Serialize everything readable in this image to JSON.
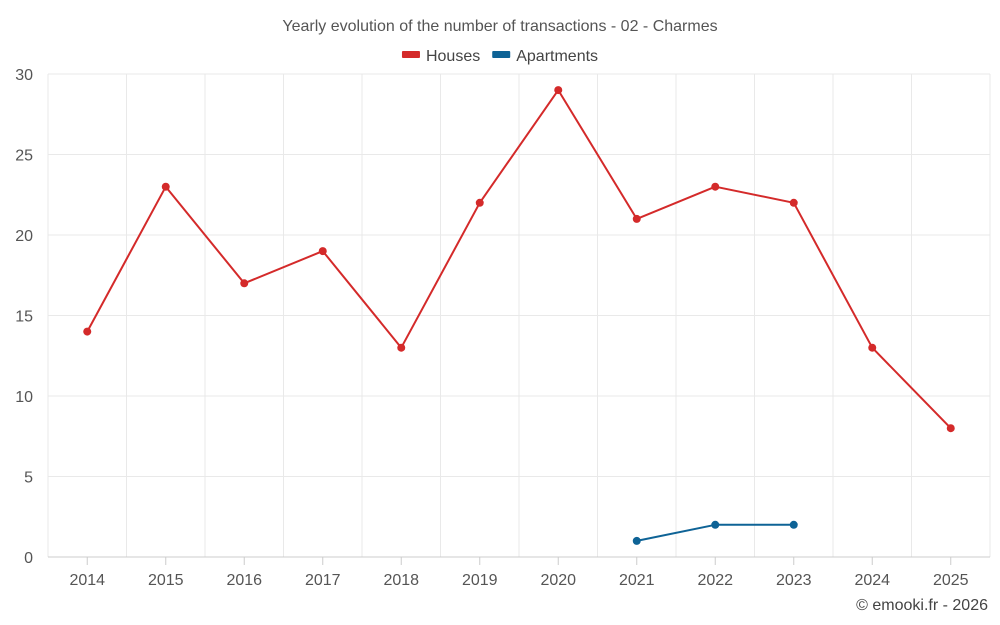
{
  "chart_data": {
    "type": "line",
    "title": "Yearly evolution of the number of transactions - 02 - Charmes",
    "categories": [
      "2014",
      "2015",
      "2016",
      "2017",
      "2018",
      "2019",
      "2020",
      "2021",
      "2022",
      "2023",
      "2024",
      "2025"
    ],
    "series": [
      {
        "name": "Houses",
        "color": "#d42a2a",
        "values": [
          14,
          23,
          17,
          19,
          13,
          22,
          29,
          21,
          23,
          22,
          13,
          8
        ]
      },
      {
        "name": "Apartments",
        "color": "#0e6396",
        "values": [
          null,
          null,
          null,
          null,
          null,
          null,
          null,
          1,
          2,
          2,
          null,
          null
        ]
      }
    ],
    "ylim": [
      0,
      30
    ],
    "yticks": [
      0,
      5,
      10,
      15,
      20,
      25,
      30
    ],
    "xlabel": "",
    "ylabel": "",
    "grid": true,
    "legend_position": "top-center"
  },
  "credit": "© emooki.fr - 2026"
}
